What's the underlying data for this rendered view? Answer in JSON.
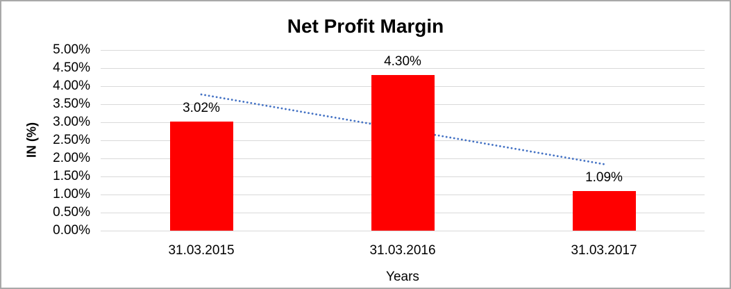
{
  "chart_data": {
    "type": "bar",
    "title": "Net Profit Margin",
    "xlabel": "Years",
    "ylabel": "IN (%)",
    "categories": [
      "31.03.2015",
      "31.03.2016",
      "31.03.2017"
    ],
    "values": [
      3.02,
      4.3,
      1.09
    ],
    "data_labels": [
      "3.02%",
      "4.30%",
      "1.09%"
    ],
    "ylim": [
      0,
      5
    ],
    "ytick_step": 0.5,
    "ytick_labels": [
      "0.00%",
      "0.50%",
      "1.00%",
      "1.50%",
      "2.00%",
      "2.50%",
      "3.00%",
      "3.50%",
      "4.00%",
      "4.50%",
      "5.00%"
    ],
    "grid": true,
    "legend": "none",
    "bar_color": "#ff0000",
    "gridline_color": "#d9d9d9",
    "text_color": "#000000",
    "trendline": {
      "type": "linear",
      "style": "dotted",
      "color": "#4472c4",
      "start_value": 3.77,
      "end_value": 1.84
    }
  }
}
